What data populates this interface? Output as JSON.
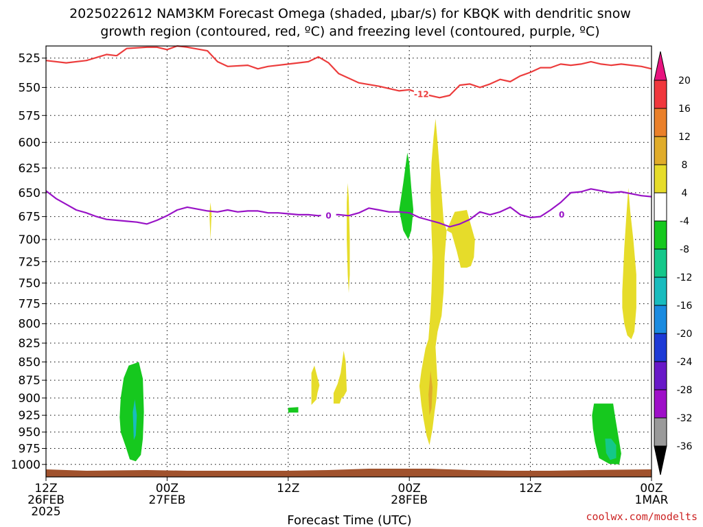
{
  "title_line1": "2025022612 NAM3KM Forecast Omega (shaded, μbar/s) for KBQK with dendritic snow",
  "title_line2": "growth region (contoured, red, ºC) and freezing level (contoured, purple, ºC)",
  "credit": "coolwx.com/modelts",
  "chart_data": {
    "type": "time-height cross section",
    "xlabel": "Forecast Time (UTC)",
    "x_ticks": [
      {
        "hour": 0,
        "line1": "12Z",
        "line2": "26FEB",
        "line3": "2025"
      },
      {
        "hour": 12,
        "line1": "00Z",
        "line2": "27FEB",
        "line3": ""
      },
      {
        "hour": 24,
        "line1": "12Z",
        "line2": "",
        "line3": ""
      },
      {
        "hour": 36,
        "line1": "00Z",
        "line2": "28FEB",
        "line3": ""
      },
      {
        "hour": 48,
        "line1": "12Z",
        "line2": "",
        "line3": ""
      },
      {
        "hour": 60,
        "line1": "00Z",
        "line2": "1MAR",
        "line3": ""
      }
    ],
    "x_range_hours": [
      0,
      60
    ],
    "y_ticks": [
      525,
      550,
      575,
      600,
      625,
      650,
      675,
      700,
      725,
      750,
      775,
      800,
      825,
      850,
      875,
      900,
      925,
      950,
      975,
      1000
    ],
    "y_range_mb": [
      515,
      1020
    ],
    "y_scale": "log-pressure",
    "grid": true,
    "colorbar": {
      "labels": [
        "20",
        "16",
        "12",
        "8",
        "4",
        "-4",
        "-8",
        "-12",
        "-16",
        "-20",
        "-24",
        "-28",
        "-32",
        "-36"
      ],
      "colors": [
        "#e8137f",
        "#f0373c",
        "#ea802a",
        "#e0ac2a",
        "#e6dc2a",
        "#ffffff",
        "#16c81e",
        "#14c88a",
        "#18bcbe",
        "#1a8be0",
        "#1c3ad6",
        "#6818c8",
        "#9e0ec8",
        "#9a9a9a",
        "#000000"
      ]
    },
    "contours": [
      {
        "name": "dendritic snow growth region -12 C",
        "label": "-12",
        "color": "#ec3c3c",
        "points": [
          [
            0,
            527
          ],
          [
            2,
            529
          ],
          [
            4,
            527
          ],
          [
            6,
            522
          ],
          [
            7,
            523
          ],
          [
            8,
            517
          ],
          [
            10,
            516
          ],
          [
            11,
            516
          ],
          [
            12,
            518
          ],
          [
            13,
            515
          ],
          [
            14,
            516
          ],
          [
            16,
            519
          ],
          [
            17,
            528
          ],
          [
            18,
            532
          ],
          [
            20,
            531
          ],
          [
            21,
            534
          ],
          [
            22,
            532
          ],
          [
            24,
            530
          ],
          [
            25,
            529
          ],
          [
            26,
            528
          ],
          [
            27,
            524
          ],
          [
            28,
            529
          ],
          [
            29,
            538
          ],
          [
            31,
            546
          ],
          [
            33,
            549
          ],
          [
            35,
            553
          ],
          [
            36,
            552
          ],
          [
            37,
            555
          ],
          [
            38,
            557
          ],
          [
            39,
            559
          ],
          [
            40,
            557
          ],
          [
            41,
            548
          ],
          [
            42,
            547
          ],
          [
            43,
            550
          ],
          [
            44,
            547
          ],
          [
            45,
            543
          ],
          [
            46,
            545
          ],
          [
            47,
            540
          ],
          [
            48,
            537
          ],
          [
            49,
            533
          ],
          [
            50,
            533
          ],
          [
            51,
            530
          ],
          [
            52,
            531
          ],
          [
            53,
            530
          ],
          [
            54,
            528
          ],
          [
            55,
            530
          ],
          [
            56,
            531
          ],
          [
            57,
            530
          ],
          [
            58,
            531
          ],
          [
            59,
            532
          ],
          [
            60,
            534
          ]
        ]
      },
      {
        "name": "freezing level 0 C",
        "label": "0",
        "color": "#9812c6",
        "points": [
          [
            0,
            648
          ],
          [
            1,
            656
          ],
          [
            2,
            662
          ],
          [
            3,
            668
          ],
          [
            4,
            671
          ],
          [
            5,
            675
          ],
          [
            6,
            678
          ],
          [
            7,
            679
          ],
          [
            8,
            680
          ],
          [
            9,
            681
          ],
          [
            10,
            683
          ],
          [
            11,
            679
          ],
          [
            12,
            674
          ],
          [
            13,
            668
          ],
          [
            14,
            665
          ],
          [
            15,
            667
          ],
          [
            16,
            669
          ],
          [
            17,
            670
          ],
          [
            18,
            668
          ],
          [
            19,
            670
          ],
          [
            20,
            669
          ],
          [
            21,
            669
          ],
          [
            22,
            671
          ],
          [
            23,
            671
          ],
          [
            24,
            672
          ],
          [
            25,
            673
          ],
          [
            26,
            673
          ],
          [
            27,
            674
          ],
          [
            28,
            673
          ],
          [
            29,
            673
          ],
          [
            30,
            674
          ],
          [
            31,
            671
          ],
          [
            32,
            666
          ],
          [
            33,
            668
          ],
          [
            34,
            670
          ],
          [
            35,
            670
          ],
          [
            36,
            671
          ],
          [
            37,
            676
          ],
          [
            38,
            679
          ],
          [
            39,
            682
          ],
          [
            40,
            686
          ],
          [
            41,
            683
          ],
          [
            42,
            678
          ],
          [
            43,
            670
          ],
          [
            44,
            673
          ],
          [
            45,
            670
          ],
          [
            46,
            665
          ],
          [
            47,
            673
          ],
          [
            48,
            676
          ],
          [
            49,
            675
          ],
          [
            50,
            668
          ],
          [
            51,
            660
          ],
          [
            52,
            650
          ],
          [
            53,
            649
          ],
          [
            54,
            646
          ],
          [
            55,
            648
          ],
          [
            56,
            650
          ],
          [
            57,
            649
          ],
          [
            58,
            651
          ],
          [
            59,
            653
          ],
          [
            60,
            654
          ]
        ]
      }
    ],
    "shaded_regions": [
      {
        "value_bin": "-4 to -8",
        "color": "#16c81e",
        "points": [
          [
            7.3,
            928
          ],
          [
            7.4,
            900
          ],
          [
            7.7,
            872
          ],
          [
            8.2,
            855
          ],
          [
            9.2,
            850
          ],
          [
            9.6,
            873
          ],
          [
            9.7,
            920
          ],
          [
            9.6,
            960
          ],
          [
            9.4,
            985
          ],
          [
            8.9,
            995
          ],
          [
            8.3,
            992
          ],
          [
            7.9,
            972
          ],
          [
            7.4,
            950
          ]
        ]
      },
      {
        "value_bin": "-8 to -16",
        "color": "#18bcbe",
        "points": [
          [
            8.6,
            920
          ],
          [
            8.8,
            902
          ],
          [
            9.0,
            925
          ],
          [
            8.9,
            955
          ],
          [
            8.7,
            962
          ]
        ]
      },
      {
        "value_bin": "-4 to -8",
        "color": "#16c81e",
        "points": [
          [
            24.0,
            914
          ],
          [
            25.0,
            913
          ],
          [
            25.0,
            921
          ],
          [
            24.0,
            921
          ]
        ]
      },
      {
        "value_bin": "-4 to -8",
        "color": "#16c81e",
        "points": [
          [
            35.0,
            668
          ],
          [
            35.4,
            640
          ],
          [
            35.8,
            610
          ],
          [
            36.0,
            620
          ],
          [
            36.2,
            645
          ],
          [
            36.4,
            668
          ],
          [
            36.2,
            690
          ],
          [
            35.9,
            700
          ],
          [
            35.4,
            690
          ]
        ]
      },
      {
        "value_bin": "-4 to -8",
        "color": "#16c81e",
        "points": [
          [
            54.1,
            925
          ],
          [
            54.3,
            908
          ],
          [
            56.2,
            908
          ],
          [
            56.4,
            928
          ],
          [
            56.7,
            955
          ],
          [
            57.0,
            983
          ],
          [
            56.8,
            1000
          ],
          [
            55.8,
            999
          ],
          [
            54.8,
            990
          ],
          [
            54.4,
            965
          ],
          [
            54.2,
            945
          ]
        ]
      },
      {
        "value_bin": "-8 to -16",
        "color": "#14c88a",
        "points": [
          [
            55.4,
            960
          ],
          [
            56.0,
            960
          ],
          [
            56.5,
            970
          ],
          [
            56.5,
            990
          ],
          [
            55.9,
            993
          ],
          [
            55.5,
            982
          ]
        ]
      },
      {
        "value_bin": "4 to 8",
        "color": "#e6dc2a",
        "points": [
          [
            16.2,
            672
          ],
          [
            16.3,
            660
          ],
          [
            16.4,
            672
          ],
          [
            16.3,
            700
          ]
        ]
      },
      {
        "value_bin": "4 to 8",
        "color": "#e6dc2a",
        "points": [
          [
            29.8,
            660
          ],
          [
            29.9,
            640
          ],
          [
            30.0,
            655
          ],
          [
            30.1,
            700
          ],
          [
            30.1,
            740
          ],
          [
            30.0,
            762
          ],
          [
            29.9,
            740
          ],
          [
            29.8,
            700
          ]
        ]
      },
      {
        "value_bin": "4 to 8",
        "color": "#e6dc2a",
        "points": [
          [
            26.3,
            865
          ],
          [
            26.6,
            855
          ],
          [
            27.1,
            882
          ],
          [
            26.9,
            893
          ],
          [
            26.8,
            902
          ],
          [
            26.3,
            910
          ],
          [
            26.3,
            890
          ]
        ]
      },
      {
        "value_bin": "4 to 8",
        "color": "#e6dc2a",
        "points": [
          [
            28.5,
            893
          ],
          [
            28.9,
            880
          ],
          [
            29.2,
            865
          ],
          [
            29.5,
            835
          ],
          [
            29.7,
            850
          ],
          [
            29.8,
            890
          ],
          [
            29.5,
            898
          ],
          [
            29.3,
            900
          ],
          [
            29.1,
            908
          ],
          [
            28.5,
            908
          ]
        ]
      },
      {
        "value_bin": "4 to 8",
        "color": "#e6dc2a",
        "points": [
          [
            37.0,
            883
          ],
          [
            37.2,
            862
          ],
          [
            37.6,
            832
          ],
          [
            37.9,
            820
          ],
          [
            38.1,
            785
          ],
          [
            38.2,
            760
          ],
          [
            38.3,
            720
          ],
          [
            38.2,
            690
          ],
          [
            38.1,
            650
          ],
          [
            38.2,
            620
          ],
          [
            38.4,
            595
          ],
          [
            38.6,
            578
          ],
          [
            38.8,
            600
          ],
          [
            39.0,
            625
          ],
          [
            39.2,
            650
          ],
          [
            39.4,
            680
          ],
          [
            39.7,
            690
          ],
          [
            40.5,
            670
          ],
          [
            41.7,
            668
          ],
          [
            42.0,
            680
          ],
          [
            42.5,
            700
          ],
          [
            42.4,
            720
          ],
          [
            42.1,
            730
          ],
          [
            41.7,
            732
          ],
          [
            41.1,
            732
          ],
          [
            40.7,
            713
          ],
          [
            40.2,
            693
          ],
          [
            39.7,
            690
          ],
          [
            39.5,
            720
          ],
          [
            39.4,
            760
          ],
          [
            39.2,
            790
          ],
          [
            38.8,
            810
          ],
          [
            38.6,
            830
          ],
          [
            38.7,
            855
          ],
          [
            38.8,
            880
          ],
          [
            38.7,
            900
          ],
          [
            38.5,
            920
          ],
          [
            38.3,
            945
          ],
          [
            38.0,
            970
          ],
          [
            37.7,
            955
          ],
          [
            37.4,
            930
          ],
          [
            37.2,
            910
          ]
        ]
      },
      {
        "value_bin": "8 to 12",
        "color": "#e0ac2a",
        "points": [
          [
            37.9,
            895
          ],
          [
            38.1,
            862
          ],
          [
            38.3,
            885
          ],
          [
            38.2,
            915
          ],
          [
            38.0,
            925
          ]
        ]
      },
      {
        "value_bin": "4 to 8",
        "color": "#e6dc2a",
        "points": [
          [
            57.1,
            760
          ],
          [
            57.3,
            710
          ],
          [
            57.5,
            675
          ],
          [
            57.7,
            645
          ],
          [
            57.9,
            670
          ],
          [
            58.2,
            700
          ],
          [
            58.5,
            740
          ],
          [
            58.5,
            780
          ],
          [
            58.3,
            810
          ],
          [
            58.0,
            820
          ],
          [
            57.6,
            815
          ],
          [
            57.3,
            800
          ],
          [
            57.1,
            780
          ]
        ]
      }
    ]
  }
}
